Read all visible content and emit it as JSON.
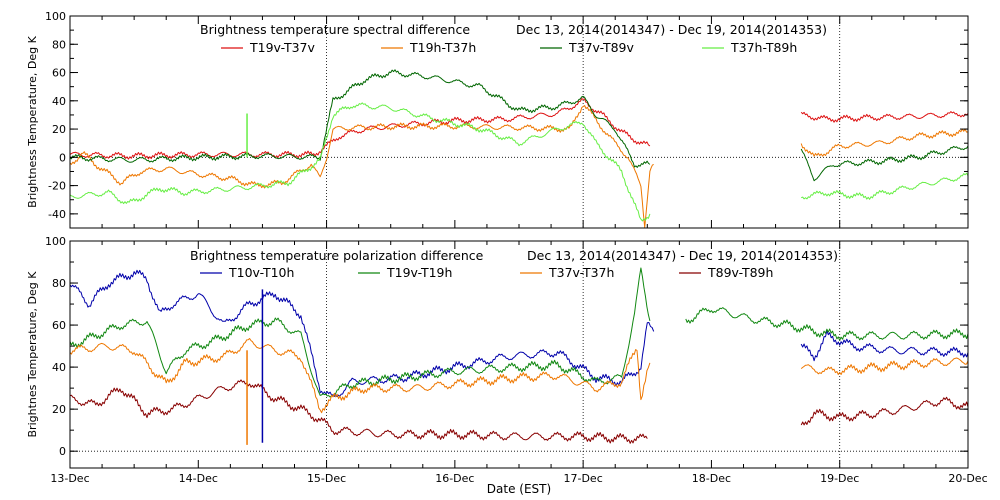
{
  "figure": {
    "xlabel": "Date (EST)"
  },
  "chart_data": [
    {
      "type": "line",
      "title": "Brightness temperature spectral difference",
      "date_range": "Dec 13, 2014(2014347) - Dec 19, 2014(2014353)",
      "ylabel": "Brightness Temperature, Deg K",
      "xlim": [
        0,
        7
      ],
      "ylim": [
        -50,
        100
      ],
      "yticks": [
        -40,
        -20,
        0,
        20,
        40,
        60,
        80,
        100
      ],
      "xticks": [
        {
          "v": 0,
          "label": "13-Dec"
        },
        {
          "v": 1,
          "label": "14-Dec"
        },
        {
          "v": 2,
          "label": "15-Dec"
        },
        {
          "v": 3,
          "label": "16-Dec"
        },
        {
          "v": 4,
          "label": "17-Dec"
        },
        {
          "v": 5,
          "label": "18-Dec"
        },
        {
          "v": 6,
          "label": "19-Dec"
        },
        {
          "v": 7,
          "label": "20-Dec"
        }
      ],
      "dashed_gridlines_x": [
        2,
        4,
        6
      ],
      "series": [
        {
          "name": "T19v-T37v",
          "color": "#dd1111",
          "segments": [
            [
              [
                0,
                2
              ],
              [
                0.5,
                1
              ],
              [
                1,
                2
              ],
              [
                1.5,
                2
              ],
              [
                1.9,
                2
              ],
              [
                2.0,
                8
              ],
              [
                2.1,
                15
              ],
              [
                2.3,
                20
              ],
              [
                2.6,
                23
              ],
              [
                3.0,
                26
              ],
              [
                3.4,
                27
              ],
              [
                3.8,
                31
              ],
              [
                4.0,
                40
              ],
              [
                4.15,
                30
              ],
              [
                4.3,
                18
              ],
              [
                4.45,
                10
              ],
              [
                4.52,
                8
              ]
            ],
            [
              [
                5.7,
                30
              ],
              [
                5.9,
                27
              ],
              [
                6.2,
                28
              ],
              [
                6.6,
                29
              ],
              [
                7.0,
                31
              ]
            ]
          ]
        },
        {
          "name": "T19h-T37h",
          "color": "#ee7700",
          "segments": [
            [
              [
                0,
                -5
              ],
              [
                0.1,
                3
              ],
              [
                0.2,
                -5
              ],
              [
                0.4,
                -18
              ],
              [
                0.55,
                -10
              ],
              [
                0.75,
                -8
              ],
              [
                1.0,
                -12
              ],
              [
                1.25,
                -15
              ],
              [
                1.45,
                -20
              ],
              [
                1.65,
                -18
              ],
              [
                1.88,
                -5
              ],
              [
                1.95,
                -15
              ],
              [
                2.0,
                0
              ],
              [
                2.05,
                20
              ],
              [
                2.2,
                21
              ],
              [
                2.6,
                22
              ],
              [
                3.0,
                22
              ],
              [
                3.5,
                21
              ],
              [
                3.9,
                20
              ],
              [
                4.0,
                38
              ],
              [
                4.2,
                15
              ],
              [
                4.35,
                0
              ],
              [
                4.45,
                -20
              ],
              [
                4.48,
                -48
              ],
              [
                4.52,
                -10
              ],
              [
                4.55,
                -5
              ]
            ],
            [
              [
                5.7,
                10
              ],
              [
                5.8,
                0
              ],
              [
                6.0,
                8
              ],
              [
                6.3,
                10
              ],
              [
                6.6,
                15
              ],
              [
                7.0,
                18
              ]
            ]
          ]
        },
        {
          "name": "T37v-T89v",
          "color": "#006600",
          "segments": [
            [
              [
                0,
                0
              ],
              [
                0.5,
                -2
              ],
              [
                1.0,
                0
              ],
              [
                1.5,
                1
              ],
              [
                1.95,
                0
              ],
              [
                2.05,
                40
              ],
              [
                2.3,
                55
              ],
              [
                2.5,
                60
              ],
              [
                2.8,
                57
              ],
              [
                3.2,
                50
              ],
              [
                3.5,
                33
              ],
              [
                3.8,
                36
              ],
              [
                4.0,
                42
              ],
              [
                4.1,
                30
              ],
              [
                4.25,
                20
              ],
              [
                4.4,
                -5
              ],
              [
                4.52,
                -5
              ]
            ],
            [
              [
                5.7,
                5
              ],
              [
                5.8,
                -15
              ],
              [
                5.95,
                -5
              ],
              [
                6.3,
                -3
              ],
              [
                6.6,
                0
              ],
              [
                7.0,
                8
              ]
            ]
          ]
        },
        {
          "name": "T37h-T89h",
          "color": "#66ee44",
          "segments": [
            [
              [
                0,
                -28
              ],
              [
                0.3,
                -25
              ],
              [
                0.45,
                -33
              ],
              [
                0.7,
                -22
              ],
              [
                0.9,
                -25
              ],
              [
                1.15,
                -23
              ],
              [
                1.4,
                -21
              ],
              [
                1.7,
                -18
              ],
              [
                1.95,
                -2
              ],
              [
                2.05,
                30
              ],
              [
                2.2,
                37
              ],
              [
                2.5,
                35
              ],
              [
                2.8,
                28
              ],
              [
                3.2,
                20
              ],
              [
                3.5,
                10
              ],
              [
                3.8,
                20
              ],
              [
                4.0,
                25
              ],
              [
                4.1,
                10
              ],
              [
                4.3,
                -10
              ],
              [
                4.45,
                -45
              ],
              [
                4.52,
                -40
              ]
            ],
            [
              [
                5.7,
                -28
              ],
              [
                5.9,
                -25
              ],
              [
                6.2,
                -28
              ],
              [
                6.5,
                -22
              ],
              [
                7.0,
                -13
              ]
            ]
          ]
        }
      ],
      "spikes": [
        {
          "x": 1.38,
          "y0": 0,
          "y1": 31,
          "color": "#66ee44"
        }
      ]
    },
    {
      "type": "line",
      "title": "Brightness temperature polarization difference",
      "date_range": "Dec 13, 2014(2014347) - Dec 19, 2014(2014353)",
      "ylabel": "Brightnes Temperature, Deg K",
      "xlim": [
        0,
        7
      ],
      "ylim": [
        -8,
        100
      ],
      "yticks": [
        0,
        20,
        40,
        60,
        80,
        100
      ],
      "xticks": [
        {
          "v": 0,
          "label": "13-Dec"
        },
        {
          "v": 1,
          "label": "14-Dec"
        },
        {
          "v": 2,
          "label": "15-Dec"
        },
        {
          "v": 3,
          "label": "16-Dec"
        },
        {
          "v": 4,
          "label": "17-Dec"
        },
        {
          "v": 5,
          "label": "18-Dec"
        },
        {
          "v": 6,
          "label": "19-Dec"
        },
        {
          "v": 7,
          "label": "20-Dec"
        }
      ],
      "dashed_gridlines_x": [
        2,
        4,
        6
      ],
      "series": [
        {
          "name": "T10v-T10h",
          "color": "#0000aa",
          "segments": [
            [
              [
                0,
                80
              ],
              [
                0.15,
                70
              ],
              [
                0.3,
                80
              ],
              [
                0.5,
                85
              ],
              [
                0.6,
                82
              ],
              [
                0.7,
                65
              ],
              [
                0.8,
                70
              ],
              [
                1.0,
                75
              ],
              [
                1.2,
                60
              ],
              [
                1.4,
                70
              ],
              [
                1.6,
                75
              ],
              [
                1.8,
                65
              ],
              [
                1.95,
                30
              ],
              [
                2.05,
                25
              ],
              [
                2.2,
                33
              ],
              [
                2.6,
                35
              ],
              [
                3.0,
                40
              ],
              [
                3.4,
                45
              ],
              [
                3.8,
                47
              ],
              [
                4.1,
                35
              ],
              [
                4.3,
                33
              ],
              [
                4.45,
                40
              ],
              [
                4.5,
                60
              ],
              [
                4.55,
                57
              ]
            ],
            [
              [
                5.7,
                50
              ],
              [
                5.8,
                45
              ],
              [
                5.9,
                55
              ],
              [
                6.1,
                50
              ],
              [
                6.4,
                48
              ],
              [
                7.0,
                47
              ]
            ]
          ]
        },
        {
          "name": "T19v-T19h",
          "color": "#118811",
          "segments": [
            [
              [
                0,
                50
              ],
              [
                0.2,
                55
              ],
              [
                0.4,
                60
              ],
              [
                0.6,
                62
              ],
              [
                0.75,
                38
              ],
              [
                0.9,
                48
              ],
              [
                1.1,
                52
              ],
              [
                1.4,
                60
              ],
              [
                1.6,
                62
              ],
              [
                1.8,
                55
              ],
              [
                1.95,
                25
              ],
              [
                2.05,
                28
              ],
              [
                2.2,
                32
              ],
              [
                2.6,
                35
              ],
              [
                3.0,
                38
              ],
              [
                3.5,
                40
              ],
              [
                3.8,
                41
              ],
              [
                4.1,
                33
              ],
              [
                4.3,
                35
              ],
              [
                4.4,
                65
              ],
              [
                4.45,
                86
              ],
              [
                4.52,
                62
              ]
            ],
            [
              [
                4.8,
                62
              ],
              [
                5.0,
                68
              ],
              [
                5.3,
                63
              ],
              [
                5.6,
                60
              ],
              [
                5.8,
                57
              ],
              [
                6.0,
                55
              ],
              [
                6.5,
                55
              ],
              [
                7.0,
                56
              ]
            ]
          ]
        },
        {
          "name": "T37v-T37h",
          "color": "#ee7700",
          "segments": [
            [
              [
                0,
                48
              ],
              [
                0.3,
                50
              ],
              [
                0.5,
                48
              ],
              [
                0.75,
                32
              ],
              [
                0.9,
                42
              ],
              [
                1.2,
                45
              ],
              [
                1.4,
                52
              ],
              [
                1.6,
                48
              ],
              [
                1.8,
                45
              ],
              [
                1.95,
                20
              ],
              [
                2.05,
                25
              ],
              [
                2.3,
                30
              ],
              [
                2.7,
                30
              ],
              [
                3.0,
                32
              ],
              [
                3.5,
                35
              ],
              [
                3.8,
                36
              ],
              [
                4.1,
                30
              ],
              [
                4.3,
                33
              ],
              [
                4.42,
                50
              ],
              [
                4.45,
                25
              ],
              [
                4.52,
                42
              ]
            ],
            [
              [
                5.7,
                40
              ],
              [
                5.9,
                38
              ],
              [
                6.3,
                40
              ],
              [
                6.7,
                42
              ],
              [
                7.0,
                43
              ]
            ]
          ]
        },
        {
          "name": "T89v-T89h",
          "color": "#880000",
          "segments": [
            [
              [
                0,
                25
              ],
              [
                0.2,
                22
              ],
              [
                0.4,
                30
              ],
              [
                0.6,
                18
              ],
              [
                0.8,
                20
              ],
              [
                1.0,
                25
              ],
              [
                1.2,
                30
              ],
              [
                1.4,
                33
              ],
              [
                1.6,
                25
              ],
              [
                1.8,
                20
              ],
              [
                1.95,
                15
              ],
              [
                2.05,
                10
              ],
              [
                2.5,
                8
              ],
              [
                3.0,
                8
              ],
              [
                3.5,
                7
              ],
              [
                4.0,
                7
              ],
              [
                4.3,
                6
              ],
              [
                4.5,
                6
              ]
            ],
            [
              [
                5.7,
                12
              ],
              [
                5.8,
                18
              ],
              [
                6.0,
                16
              ],
              [
                6.3,
                18
              ],
              [
                6.5,
                20
              ],
              [
                6.8,
                24
              ],
              [
                7.0,
                21
              ]
            ]
          ]
        }
      ],
      "spikes": [
        {
          "x": 1.38,
          "y0": 3,
          "y1": 48,
          "color": "#ee7700"
        },
        {
          "x": 1.5,
          "y0": 4,
          "y1": 77,
          "color": "#0000aa"
        }
      ]
    }
  ]
}
